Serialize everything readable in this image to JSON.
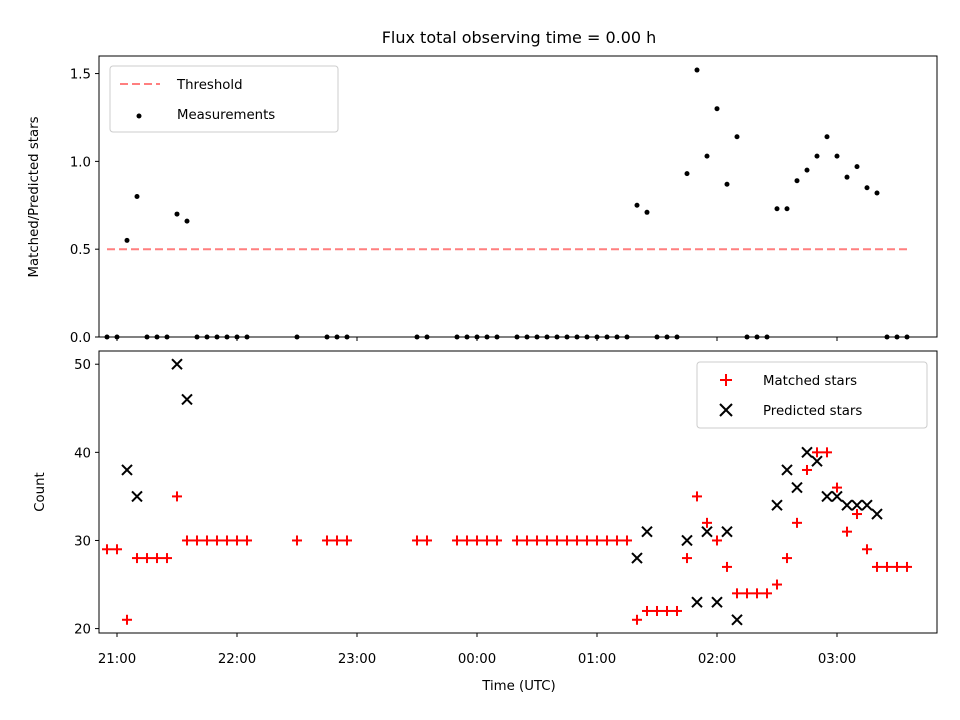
{
  "chart_data": [
    {
      "type": "scatter",
      "title": "Flux total observing time = 0.00 h",
      "ylabel": "Matched/Predicted stars",
      "xlabel": "",
      "xlim": [
        "20:51",
        "03:50"
      ],
      "ylim": [
        0,
        1.6
      ],
      "yticks": [
        "0.0",
        "0.5",
        "1.0",
        "1.5"
      ],
      "legend_position": "top-left",
      "threshold": {
        "name": "Threshold",
        "value": 0.5,
        "x_start": "20:55",
        "x_end": "03:35",
        "color": "#ff7f7f",
        "style": "dashed"
      },
      "series": [
        {
          "name": "Measurements",
          "color": "#000000",
          "x": [
            "20:55",
            "21:00",
            "21:05",
            "21:10",
            "21:15",
            "21:20",
            "21:25",
            "21:30",
            "21:35",
            "21:40",
            "21:45",
            "21:50",
            "21:55",
            "22:00",
            "22:05",
            "22:30",
            "22:45",
            "22:50",
            "22:55",
            "23:30",
            "23:35",
            "23:50",
            "23:55",
            "00:00",
            "00:05",
            "00:10",
            "00:20",
            "00:25",
            "00:30",
            "00:35",
            "00:40",
            "00:45",
            "00:50",
            "00:55",
            "01:00",
            "01:05",
            "01:10",
            "01:15",
            "01:20",
            "01:25",
            "01:30",
            "01:35",
            "01:40",
            "01:45",
            "01:50",
            "01:55",
            "02:00",
            "02:05",
            "02:10",
            "02:15",
            "02:20",
            "02:25",
            "02:30",
            "02:35",
            "02:40",
            "02:45",
            "02:50",
            "02:55",
            "03:00",
            "03:05",
            "03:10",
            "03:15",
            "03:20",
            "03:25",
            "03:30",
            "03:35"
          ],
          "y": [
            0,
            0,
            0.55,
            0.8,
            0,
            0,
            0,
            0.7,
            0.66,
            0,
            0,
            0,
            0,
            0,
            0,
            0,
            0,
            0,
            0,
            0,
            0,
            0,
            0,
            0,
            0,
            0,
            0,
            0,
            0,
            0,
            0,
            0,
            0,
            0,
            0,
            0,
            0,
            0,
            0.75,
            0.71,
            0,
            0,
            0,
            0.93,
            1.52,
            1.03,
            1.3,
            0.87,
            1.14,
            0,
            0,
            0,
            0.73,
            0.73,
            0.89,
            0.95,
            1.03,
            1.14,
            1.03,
            0.91,
            0.97,
            0.85,
            0.82,
            0,
            0,
            0
          ]
        }
      ]
    },
    {
      "type": "scatter",
      "title": "",
      "ylabel": "Count",
      "xlabel": "Time (UTC)",
      "xlim": [
        "20:51",
        "03:50"
      ],
      "ylim": [
        19.5,
        51.5
      ],
      "yticks": [
        "20",
        "30",
        "40",
        "50"
      ],
      "xticks": [
        "21:00",
        "22:00",
        "23:00",
        "00:00",
        "01:00",
        "02:00",
        "03:00"
      ],
      "legend_position": "top-right",
      "series": [
        {
          "name": "Matched stars",
          "color": "#ff0000",
          "marker": "plus",
          "x": [
            "20:55",
            "21:00",
            "21:05",
            "21:10",
            "21:15",
            "21:20",
            "21:25",
            "21:30",
            "21:35",
            "21:40",
            "21:45",
            "21:50",
            "21:55",
            "22:00",
            "22:05",
            "22:30",
            "22:45",
            "22:50",
            "22:55",
            "23:30",
            "23:35",
            "23:50",
            "23:55",
            "00:00",
            "00:05",
            "00:10",
            "00:20",
            "00:25",
            "00:30",
            "00:35",
            "00:40",
            "00:45",
            "00:50",
            "00:55",
            "01:00",
            "01:05",
            "01:10",
            "01:15",
            "01:20",
            "01:25",
            "01:30",
            "01:35",
            "01:40",
            "01:45",
            "01:50",
            "01:55",
            "02:00",
            "02:05",
            "02:10",
            "02:15",
            "02:20",
            "02:25",
            "02:30",
            "02:35",
            "02:40",
            "02:45",
            "02:50",
            "02:55",
            "03:00",
            "03:05",
            "03:10",
            "03:15",
            "03:20",
            "03:25",
            "03:30",
            "03:35"
          ],
          "y": [
            29,
            29,
            21,
            28,
            28,
            28,
            28,
            35,
            30,
            30,
            30,
            30,
            30,
            30,
            30,
            30,
            30,
            30,
            30,
            30,
            30,
            30,
            30,
            30,
            30,
            30,
            30,
            30,
            30,
            30,
            30,
            30,
            30,
            30,
            30,
            30,
            30,
            30,
            21,
            22,
            22,
            22,
            22,
            28,
            35,
            32,
            30,
            27,
            24,
            24,
            24,
            24,
            25,
            28,
            32,
            38,
            40,
            40,
            36,
            31,
            33,
            29,
            27,
            27,
            27,
            27
          ]
        },
        {
          "name": "Predicted stars",
          "color": "#000000",
          "marker": "x",
          "x": [
            "21:05",
            "21:10",
            "21:30",
            "21:35",
            "01:20",
            "01:25",
            "01:45",
            "01:50",
            "01:55",
            "02:00",
            "02:05",
            "02:10",
            "02:30",
            "02:35",
            "02:40",
            "02:45",
            "02:50",
            "02:55",
            "03:00",
            "03:05",
            "03:10",
            "03:15",
            "03:20"
          ],
          "y": [
            38,
            35,
            50,
            46,
            28,
            31,
            30,
            23,
            31,
            23,
            31,
            21,
            34,
            38,
            36,
            40,
            39,
            35,
            35,
            34,
            34,
            34,
            33
          ]
        }
      ]
    }
  ]
}
